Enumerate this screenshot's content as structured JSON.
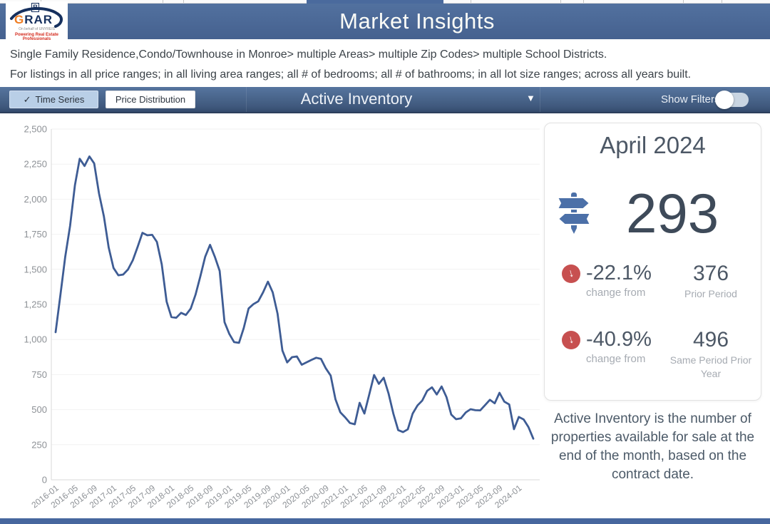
{
  "header": {
    "title": "Market Insights"
  },
  "logo": {
    "realtor_mark": "R",
    "name_first_letter": "G",
    "name_rest": "RAR",
    "tagline1": "On behalf of UNYREIS",
    "tagline2": "Powering Real Estate Professionals"
  },
  "filters_summary": {
    "line1": "Single Family Residence,Condo/Townhouse in Monroe> multiple Areas> multiple Zip Codes> multiple School Districts.",
    "line2": "For listings in all price ranges; in all living area ranges; all # of bedrooms; all # of bathrooms; in all lot size ranges; across all years built."
  },
  "toolbar": {
    "time_series_label": "Time Series",
    "price_distribution_label": "Price Distribution",
    "metric_title": "Active Inventory",
    "show_filters_label": "Show Filters:",
    "show_filters_on": false
  },
  "icons": {
    "check": "✓",
    "chevron_down": "▼",
    "arrow_down": "↓"
  },
  "stat_card": {
    "period_label": "April 2024",
    "value": "293",
    "rows": [
      {
        "direction": "down",
        "pct": "-22.1%",
        "pct_label": "change from",
        "compare_value": "376",
        "compare_label": "Prior Period"
      },
      {
        "direction": "down",
        "pct": "-40.9%",
        "pct_label": "change from",
        "compare_value": "496",
        "compare_label": "Same Period Prior Year"
      }
    ]
  },
  "description": {
    "text": "Active Inventory is the number of properties available for sale at the end of the month, based on the contract date."
  },
  "colors": {
    "header_blue": "#4a6a9d",
    "line_color": "#3e5c94",
    "negative_red": "#c75050",
    "icon_blue": "#4c70a8"
  },
  "chart_data": {
    "type": "line",
    "title": "Active Inventory",
    "xlabel": "",
    "ylabel": "",
    "grid": true,
    "legend": "none",
    "ylim": [
      0,
      2500
    ],
    "y_ticks": [
      0,
      250,
      500,
      750,
      1000,
      1250,
      1500,
      1750,
      2000,
      2250,
      2500
    ],
    "y_tick_labels": [
      "0",
      "250",
      "500",
      "750",
      "1,000",
      "1,250",
      "1,500",
      "1,750",
      "2,000",
      "2,250",
      "2,500"
    ],
    "x_tick_every": 4,
    "x_tick_rotation_deg": -38,
    "line_color": "#3e5c94",
    "x": [
      "2016-01",
      "2016-02",
      "2016-03",
      "2016-04",
      "2016-05",
      "2016-06",
      "2016-07",
      "2016-08",
      "2016-09",
      "2016-10",
      "2016-11",
      "2016-12",
      "2017-01",
      "2017-02",
      "2017-03",
      "2017-04",
      "2017-05",
      "2017-06",
      "2017-07",
      "2017-08",
      "2017-09",
      "2017-10",
      "2017-11",
      "2017-12",
      "2018-01",
      "2018-02",
      "2018-03",
      "2018-04",
      "2018-05",
      "2018-06",
      "2018-07",
      "2018-08",
      "2018-09",
      "2018-10",
      "2018-11",
      "2018-12",
      "2019-01",
      "2019-02",
      "2019-03",
      "2019-04",
      "2019-05",
      "2019-06",
      "2019-07",
      "2019-08",
      "2019-09",
      "2019-10",
      "2019-11",
      "2019-12",
      "2020-01",
      "2020-02",
      "2020-03",
      "2020-04",
      "2020-05",
      "2020-06",
      "2020-07",
      "2020-08",
      "2020-09",
      "2020-10",
      "2020-11",
      "2020-12",
      "2021-01",
      "2021-02",
      "2021-03",
      "2021-04",
      "2021-05",
      "2021-06",
      "2021-07",
      "2021-08",
      "2021-09",
      "2021-10",
      "2021-11",
      "2021-12",
      "2022-01",
      "2022-02",
      "2022-03",
      "2022-04",
      "2022-05",
      "2022-06",
      "2022-07",
      "2022-08",
      "2022-09",
      "2022-10",
      "2022-11",
      "2022-12",
      "2023-01",
      "2023-02",
      "2023-03",
      "2023-04",
      "2023-05",
      "2023-06",
      "2023-07",
      "2023-08",
      "2023-09",
      "2023-10",
      "2023-11",
      "2023-12",
      "2024-01",
      "2024-02",
      "2024-03",
      "2024-04"
    ],
    "values": [
      1052,
      1320,
      1590,
      1810,
      2100,
      2288,
      2237,
      2305,
      2255,
      2040,
      1878,
      1657,
      1510,
      1458,
      1463,
      1499,
      1565,
      1661,
      1760,
      1743,
      1746,
      1695,
      1535,
      1270,
      1160,
      1155,
      1190,
      1175,
      1220,
      1320,
      1450,
      1590,
      1675,
      1590,
      1489,
      1124,
      1040,
      981,
      976,
      1082,
      1221,
      1252,
      1272,
      1336,
      1412,
      1336,
      1184,
      921,
      837,
      874,
      879,
      820,
      837,
      854,
      870,
      862,
      794,
      743,
      574,
      481,
      445,
      405,
      396,
      549,
      472,
      608,
      747,
      684,
      727,
      615,
      472,
      354,
      340,
      360,
      472,
      530,
      565,
      634,
      659,
      608,
      665,
      590,
      465,
      432,
      438,
      480,
      503,
      496,
      495,
      532,
      570,
      545,
      620,
      557,
      537,
      361,
      448,
      430,
      376,
      293
    ]
  }
}
